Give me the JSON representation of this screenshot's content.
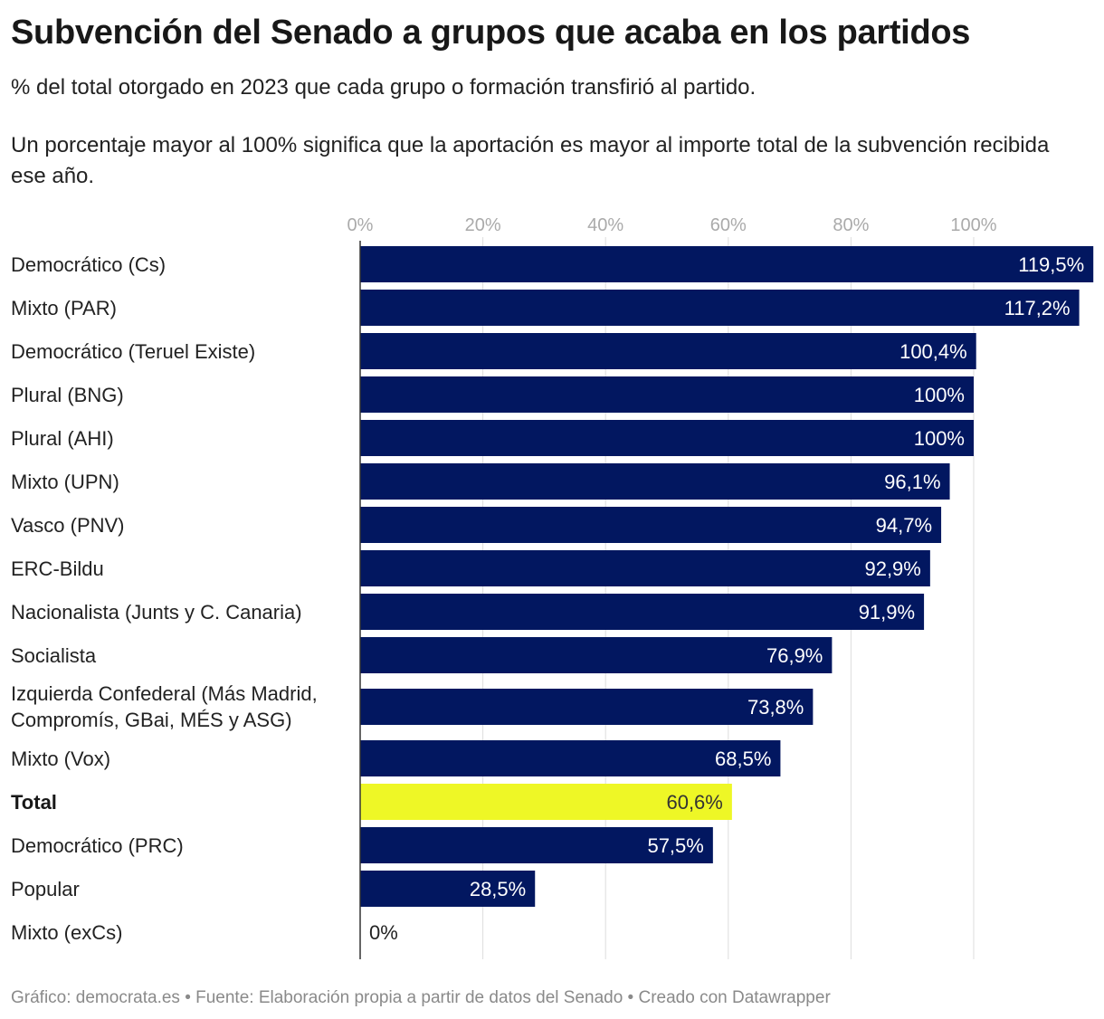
{
  "header": {
    "title": "Subvención del Senado a grupos que acaba en los partidos",
    "subtitle": "% del total otorgado en 2023 que cada grupo o formación transfirió al partido.",
    "note": "Un porcentaje mayor al 100% significa que la aportación es mayor al importe total de la subvención recibida ese año."
  },
  "footer": {
    "text": "Gráfico: democrata.es • Fuente: Elaboración propia a partir de datos del Senado • Creado con Datawrapper"
  },
  "colors": {
    "bar": "#021760",
    "highlight": "#eef726",
    "grid": "#dddddd",
    "axis": "#333333",
    "tick_text": "#aaaaaa",
    "label_on_bar": "#ffffff",
    "label_on_highlight": "#333333",
    "label_outside": "#222222"
  },
  "chart_data": {
    "type": "bar",
    "orientation": "horizontal",
    "title": "Subvención del Senado a grupos que acaba en los partidos",
    "xlabel": "",
    "ylabel": "",
    "xlim": [
      0,
      120
    ],
    "x_ticks": [
      0,
      20,
      40,
      60,
      80,
      100
    ],
    "x_tick_labels": [
      "0%",
      "20%",
      "40%",
      "60%",
      "80%",
      "100%"
    ],
    "grid": true,
    "categories": [
      "Democrático (Cs)",
      "Mixto (PAR)",
      "Democrático (Teruel Existe)",
      "Plural (BNG)",
      "Plural (AHI)",
      "Mixto (UPN)",
      "Vasco (PNV)",
      "ERC-Bildu",
      "Nacionalista (Junts y C. Canaria)",
      "Socialista",
      "Izquierda Confederal (Más Madrid, Compromís, GBai, MÉS y ASG)",
      "Mixto (Vox)",
      "Total",
      "Democrático (PRC)",
      "Popular",
      "Mixto (exCs)"
    ],
    "values": [
      119.5,
      117.2,
      100.4,
      100,
      100,
      96.1,
      94.7,
      92.9,
      91.9,
      76.9,
      73.8,
      68.5,
      60.6,
      57.5,
      28.5,
      0
    ],
    "value_labels": [
      "119,5%",
      "117,2%",
      "100,4%",
      "100%",
      "100%",
      "96,1%",
      "94,7%",
      "92,9%",
      "91,9%",
      "76,9%",
      "73,8%",
      "68,5%",
      "60,6%",
      "57,5%",
      "28,5%",
      "0%"
    ],
    "highlight": [
      "Total"
    ]
  }
}
